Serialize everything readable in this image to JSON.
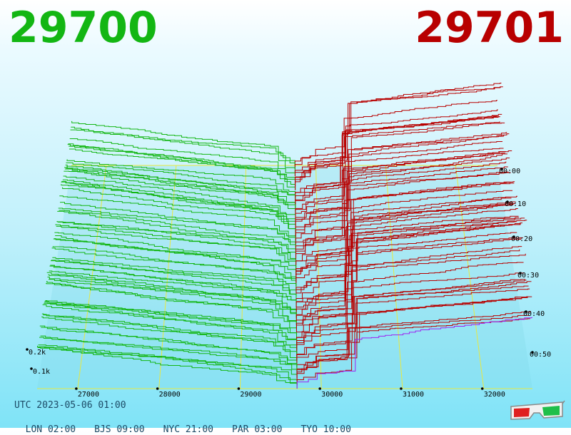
{
  "header": {
    "best_bid": "29700",
    "best_ask": "29701"
  },
  "colors": {
    "bid": "#13b613",
    "ask": "#b80000",
    "grid": "#e8e840",
    "latest": "#a020f0"
  },
  "chart_data": {
    "type": "area",
    "x_axis": {
      "ticks": [
        "27000",
        "28000",
        "29000",
        "30000",
        "31000",
        "32000"
      ],
      "range": [
        26500,
        32600
      ]
    },
    "depth_axis": {
      "ticks": [
        "0.1k",
        "0.2k"
      ],
      "range": [
        0,
        250
      ]
    },
    "time_axis": {
      "ticks": [
        "00:00",
        "00:10",
        "00:20",
        "00:30",
        "00:40",
        "00:50"
      ]
    },
    "mid_price": 29700.5,
    "series": [
      {
        "side": "bid",
        "price_range": [
          26500,
          29700
        ],
        "depth_at_far_end": 230
      },
      {
        "side": "ask",
        "price_range": [
          29701,
          32600
        ],
        "depth_at_far_end": 190
      }
    ]
  },
  "footer": {
    "utc": "UTC 2023-05-06 01:00",
    "zones": [
      "LON 02:00",
      "BJS 09:00",
      "NYC 21:00",
      "PAR 03:00",
      "TYO 10:00"
    ]
  },
  "icons": {
    "glasses": "3d-glasses-icon"
  }
}
